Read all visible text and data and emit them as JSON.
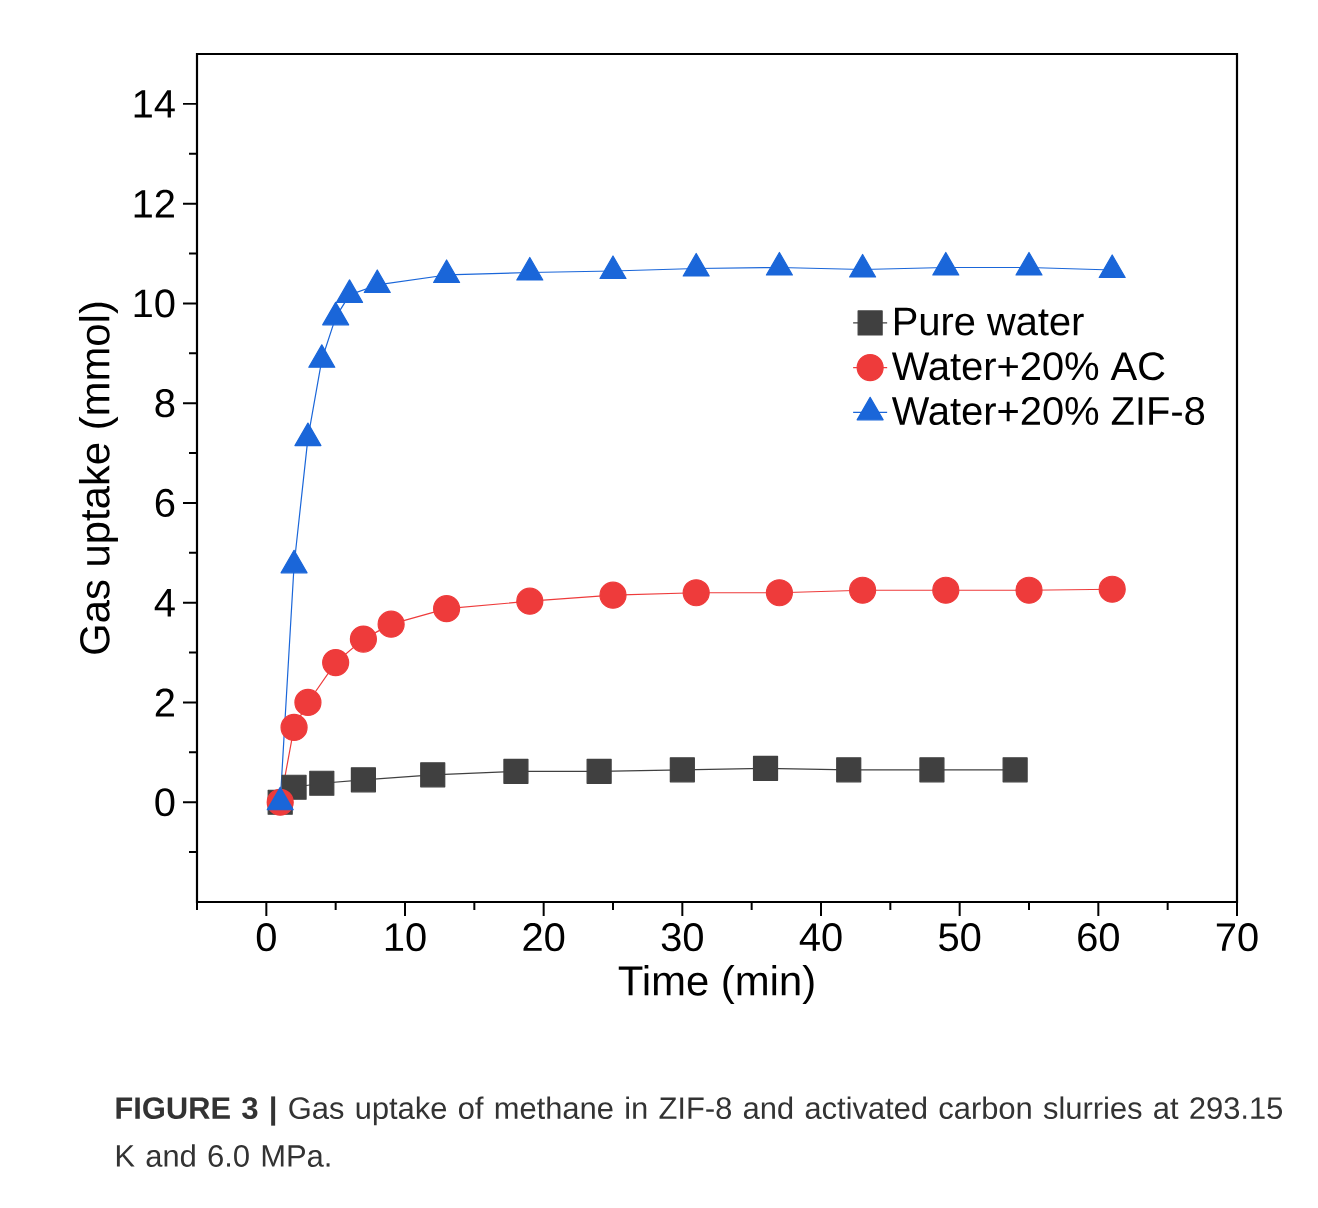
{
  "chart_data": {
    "type": "line",
    "xlabel": "Time (min)",
    "ylabel": "Gas uptake (mmol)",
    "xlim": [
      -5,
      70
    ],
    "ylim": [
      -2,
      15
    ],
    "xticks": [
      {
        "value": -5,
        "label": null
      },
      0,
      {
        "value": 5,
        "label": null
      },
      10,
      {
        "value": 15,
        "label": null
      },
      20,
      {
        "value": 25,
        "label": null
      },
      30,
      {
        "value": 35,
        "label": null
      },
      40,
      {
        "value": 45,
        "label": null
      },
      50,
      {
        "value": 55,
        "label": null
      },
      60,
      {
        "value": 65,
        "label": null
      },
      70
    ],
    "yticks": [
      {
        "value": -1,
        "label": null
      },
      0,
      {
        "value": 1,
        "label": null
      },
      2,
      {
        "value": 3,
        "label": null
      },
      4,
      {
        "value": 5,
        "label": null
      },
      6,
      {
        "value": 7,
        "label": null
      },
      8,
      {
        "value": 9,
        "label": null
      },
      10,
      {
        "value": 11,
        "label": null
      },
      12,
      {
        "value": 13,
        "label": null
      },
      14
    ],
    "legend": "right",
    "line_style": "solid",
    "grid": false,
    "annotations": [
      "**FIGURE 3 |** Gas uptake of methane in ZIF-8 and activated carbon slurries at 293.15 K and 6.0 MPa."
    ],
    "series": [
      {
        "name": "Pure water",
        "color": "#404040",
        "marker": "square",
        "x": [
          1,
          2,
          4,
          7,
          12,
          18,
          24,
          30,
          36,
          42,
          48,
          54
        ],
        "values": [
          0,
          0.3,
          0.38,
          0.45,
          0.55,
          0.62,
          0.62,
          0.65,
          0.68,
          0.65,
          0.65,
          0.65
        ]
      },
      {
        "name": "Water+20% AC",
        "color": "#ee3b3b",
        "marker": "circle",
        "x": [
          1,
          2,
          3,
          5,
          7,
          9,
          13,
          19,
          25,
          31,
          37,
          43,
          49,
          55,
          61
        ],
        "values": [
          0,
          1.5,
          2.0,
          2.8,
          3.27,
          3.57,
          3.88,
          4.03,
          4.15,
          4.2,
          4.2,
          4.25,
          4.25,
          4.25,
          4.27
        ]
      },
      {
        "name": "Water+20% ZIF-8",
        "color": "#1a66d9",
        "marker": "triangle",
        "x": [
          1,
          2,
          3,
          4,
          5,
          6,
          8,
          13,
          19,
          25,
          31,
          37,
          43,
          49,
          55,
          61
        ],
        "values": [
          0,
          4.75,
          7.3,
          8.87,
          9.72,
          10.17,
          10.37,
          10.57,
          10.62,
          10.65,
          10.7,
          10.72,
          10.68,
          10.72,
          10.72,
          10.67
        ]
      }
    ]
  }
}
